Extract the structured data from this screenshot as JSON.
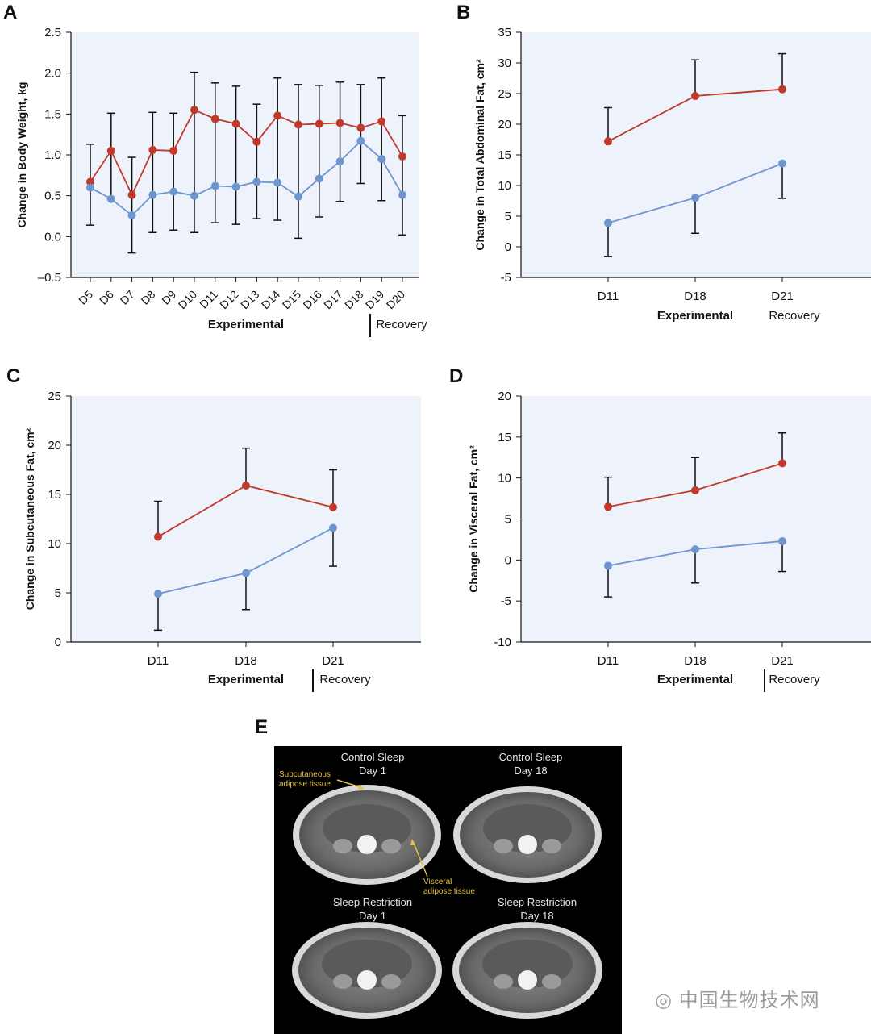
{
  "chart_data": [
    {
      "id": "A",
      "type": "line",
      "ylabel": "Change in Body Weight, kg",
      "ylim": [
        -0.5,
        2.5
      ],
      "yticks": [
        -0.5,
        0.0,
        0.5,
        1.0,
        1.5,
        2.0,
        2.5
      ],
      "ytick_labels": [
        "–0.5",
        "0.0",
        "0.5",
        "1.0",
        "1.5",
        "2.0",
        "2.5"
      ],
      "categories": [
        "D5",
        "D6",
        "D7",
        "D8",
        "D9",
        "D10",
        "D11",
        "D12",
        "D13",
        "D14",
        "D15",
        "D16",
        "D17",
        "D18",
        "D19",
        "D20"
      ],
      "xgroup_labels": [
        "Experimental",
        "Recovery"
      ],
      "series": [
        {
          "name": "Sleep Restriction",
          "color": "#c0392b",
          "values": [
            0.67,
            1.05,
            0.51,
            1.06,
            1.05,
            1.55,
            1.44,
            1.38,
            1.16,
            1.48,
            1.37,
            1.38,
            1.39,
            1.33,
            1.41,
            0.98
          ],
          "err_up": [
            1.13,
            1.51,
            0.97,
            1.52,
            1.51,
            2.01,
            1.88,
            1.84,
            1.62,
            1.94,
            1.86,
            1.85,
            1.89,
            1.86,
            1.94,
            1.48
          ],
          "err_down": [
            0.14,
            0.46,
            -0.2,
            0.05,
            0.08,
            0.05,
            0.17,
            0.15,
            0.22,
            0.2,
            -0.02,
            0.24,
            0.43,
            0.65,
            0.44,
            0.02
          ]
        },
        {
          "name": "Control Sleep",
          "color": "#6e95d0",
          "values": [
            0.6,
            0.46,
            0.26,
            0.51,
            0.55,
            0.5,
            0.62,
            0.61,
            0.67,
            0.66,
            0.49,
            0.71,
            0.92,
            1.17,
            0.95,
            0.51
          ],
          "err_up": [],
          "err_down": []
        }
      ]
    },
    {
      "id": "B",
      "type": "line",
      "ylabel": "Change in Total Abdominal Fat, cm²",
      "ylim": [
        -5,
        35
      ],
      "yticks": [
        -5,
        0,
        5,
        10,
        15,
        20,
        25,
        30,
        35
      ],
      "ytick_labels": [
        "-5",
        "0",
        "5",
        "10",
        "15",
        "20",
        "25",
        "30",
        "35"
      ],
      "categories": [
        "D11",
        "D18",
        "D21"
      ],
      "xgroup_labels": [
        "Experimental",
        "Recovery"
      ],
      "series": [
        {
          "name": "Sleep Restriction",
          "color": "#c0392b",
          "values": [
            17.2,
            24.6,
            25.7
          ],
          "err_up": [
            22.7,
            30.5,
            31.5
          ],
          "err_down": []
        },
        {
          "name": "Control Sleep",
          "color": "#6e95d0",
          "values": [
            3.9,
            8.0,
            13.6
          ],
          "err_up": [],
          "err_down": [
            -1.6,
            2.2,
            7.9
          ]
        }
      ]
    },
    {
      "id": "C",
      "type": "line",
      "ylabel": "Change in Subcutaneous Fat, cm²",
      "ylim": [
        0,
        25
      ],
      "yticks": [
        0,
        5,
        10,
        15,
        20,
        25
      ],
      "ytick_labels": [
        "0",
        "5",
        "10",
        "15",
        "20",
        "25"
      ],
      "categories": [
        "D11",
        "D18",
        "D21"
      ],
      "xgroup_labels": [
        "Experimental",
        "Recovery"
      ],
      "series": [
        {
          "name": "Sleep Restriction",
          "color": "#c0392b",
          "values": [
            10.7,
            15.9,
            13.7
          ],
          "err_up": [
            14.3,
            19.7,
            17.5
          ],
          "err_down": []
        },
        {
          "name": "Control Sleep",
          "color": "#6e95d0",
          "values": [
            4.9,
            7.0,
            11.6
          ],
          "err_up": [],
          "err_down": [
            1.2,
            3.3,
            7.7
          ]
        }
      ]
    },
    {
      "id": "D",
      "type": "line",
      "ylabel": "Change in Visceral Fat, cm²",
      "ylim": [
        -10,
        20
      ],
      "yticks": [
        -10,
        -5,
        0,
        5,
        10,
        15,
        20
      ],
      "ytick_labels": [
        "-10",
        "-5",
        "0",
        "5",
        "10",
        "15",
        "20"
      ],
      "categories": [
        "D11",
        "D18",
        "D21"
      ],
      "xgroup_labels": [
        "Experimental",
        "Recovery"
      ],
      "series": [
        {
          "name": "Sleep Restriction",
          "color": "#c0392b",
          "values": [
            6.5,
            8.5,
            11.8
          ],
          "err_up": [
            10.1,
            12.5,
            15.5
          ],
          "err_down": []
        },
        {
          "name": "Control Sleep",
          "color": "#6e95d0",
          "values": [
            -0.7,
            1.3,
            2.3
          ],
          "err_up": [],
          "err_down": [
            -4.5,
            -2.8,
            -1.4
          ]
        }
      ]
    }
  ],
  "panel_e": {
    "letter": "E",
    "labels": {
      "control_day1": [
        "Control Sleep",
        "Day 1"
      ],
      "control_day18": [
        "Control Sleep",
        "Day 18"
      ],
      "restriction_day1": [
        "Sleep Restriction",
        "Day 1"
      ],
      "restriction_day18": [
        "Sleep Restriction",
        "Day 18"
      ]
    },
    "annotations": {
      "subcutaneous": [
        "Subcutaneous",
        "adipose tissue"
      ],
      "visceral": [
        "Visceral",
        "adipose tissue"
      ]
    },
    "annotation_color": "#e8c14a"
  },
  "watermark": "中国生物技术网"
}
